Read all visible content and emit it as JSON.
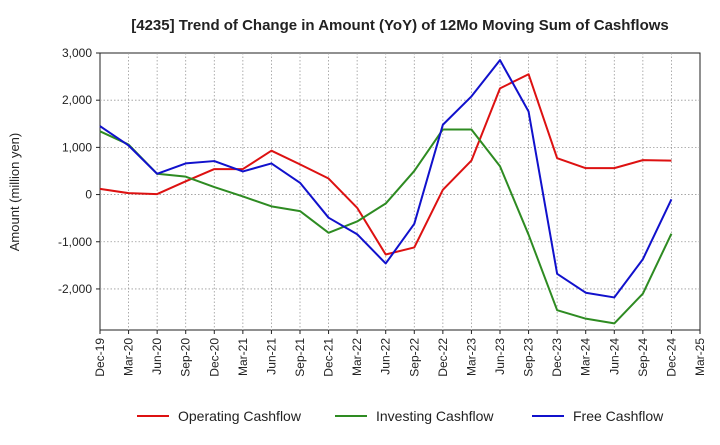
{
  "chart_data": {
    "type": "line",
    "title": "[4235]  Trend of Change in Amount (YoY) of 12Mo Moving Sum of Cashflows",
    "xlabel": "",
    "ylabel": "Amount (million yen)",
    "ylim": [
      -2870,
      3000
    ],
    "yticks": [
      -2000,
      -1000,
      0,
      1000,
      2000,
      3000
    ],
    "ytick_labels": [
      "-2,000",
      "-1,000",
      "0",
      "1,000",
      "2,000",
      "3,000"
    ],
    "categories": [
      "Dec-19",
      "Mar-20",
      "Jun-20",
      "Sep-20",
      "Dec-20",
      "Mar-21",
      "Jun-21",
      "Sep-21",
      "Dec-21",
      "Mar-22",
      "Jun-22",
      "Sep-22",
      "Dec-22",
      "Mar-23",
      "Jun-23",
      "Sep-23",
      "Dec-23",
      "Mar-24",
      "Jun-24",
      "Sep-24",
      "Dec-24",
      "Mar-25"
    ],
    "grid": true,
    "legend_position": "bottom",
    "series": [
      {
        "name": "Operating Cashflow",
        "color": "#dd1111",
        "values": [
          120,
          30,
          10,
          280,
          540,
          540,
          930,
          640,
          340,
          -280,
          -1270,
          -1120,
          100,
          720,
          2250,
          2550,
          770,
          560,
          560,
          730,
          720,
          null
        ]
      },
      {
        "name": "Investing Cashflow",
        "color": "#2e8b22",
        "values": [
          1340,
          1060,
          440,
          380,
          160,
          -40,
          -250,
          -350,
          -810,
          -570,
          -190,
          500,
          1380,
          1380,
          600,
          -850,
          -2450,
          -2630,
          -2730,
          -2100,
          -830,
          null
        ]
      },
      {
        "name": "Free Cashflow",
        "color": "#1111cc",
        "values": [
          1450,
          1040,
          440,
          660,
          710,
          490,
          660,
          250,
          -490,
          -840,
          -1460,
          -620,
          1480,
          2080,
          2850,
          1760,
          -1680,
          -2080,
          -2180,
          -1370,
          -100,
          null
        ]
      }
    ]
  }
}
